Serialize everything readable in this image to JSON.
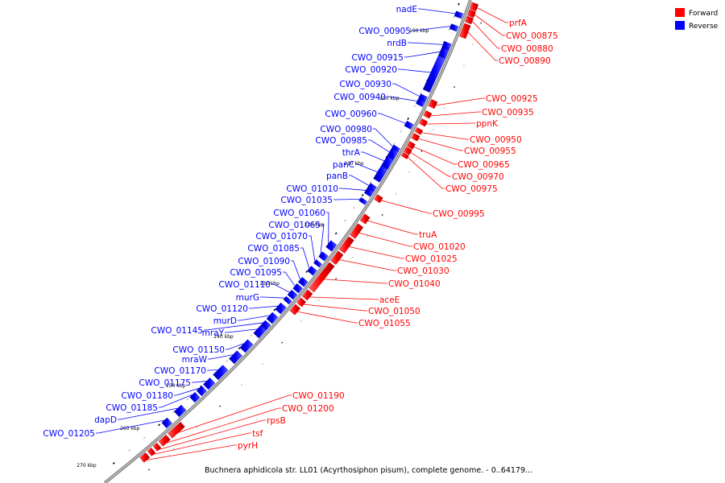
{
  "legend": {
    "items": [
      {
        "label": "Forward",
        "color": "#ff0000"
      },
      {
        "label": "Reverse",
        "color": "#0000ff"
      }
    ]
  },
  "caption": "Buchnera aphidicola str. LL01 (Acyrthosiphon pisum), complete genome. - 0..64179...",
  "tick_labels": [
    "190 kbp",
    "200 kbp",
    "210 kbp",
    "220 kbp",
    "230 kbp",
    "240 kbp",
    "250 kbp",
    "260 kbp",
    "270 kbp"
  ],
  "forward_genes": [
    "prfA",
    "CWO_00875",
    "CWO_00880",
    "CWO_00890",
    "CWO_00925",
    "CWO_00935",
    "ppnK",
    "CWO_00950",
    "CWO_00955",
    "CWO_00965",
    "CWO_00970",
    "CWO_00975",
    "CWO_00995",
    "truA",
    "CWO_01020",
    "CWO_01025",
    "CWO_01030",
    "CWO_01040",
    "aceE",
    "CWO_01050",
    "CWO_01055",
    "CWO_01190",
    "CWO_01200",
    "rpsB",
    "tsf",
    "pyrH"
  ],
  "reverse_genes": [
    "nadE",
    "CWO_00905",
    "nrdB",
    "CWO_00915",
    "CWO_00920",
    "CWO_00930",
    "CWO_00940",
    "CWO_00960",
    "CWO_00980",
    "CWO_00985",
    "thrA",
    "panC",
    "panB",
    "CWO_01010",
    "CWO_01035",
    "CWO_01060",
    "CWO_01065",
    "CWO_01070",
    "CWO_01085",
    "CWO_01090",
    "CWO_01095",
    "CWO_01110",
    "murG",
    "CWO_01120",
    "murD",
    "CWO_01145",
    "mraY",
    "CWO_01150",
    "mraW",
    "CWO_01170",
    "CWO_01175",
    "CWO_01180",
    "CWO_01185",
    "dapD",
    "CWO_01205"
  ]
}
